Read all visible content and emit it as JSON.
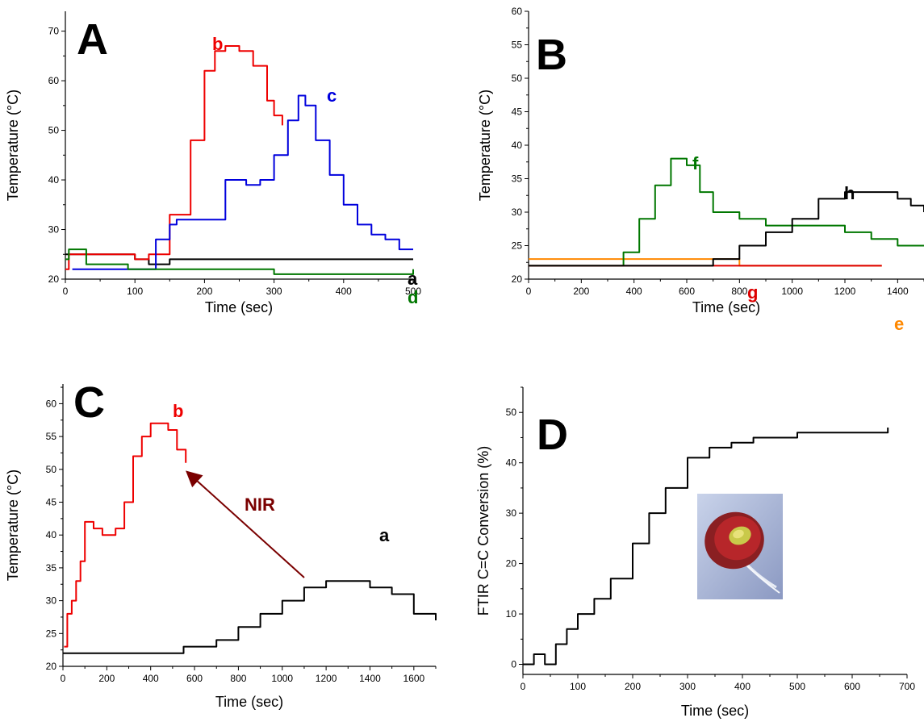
{
  "chart_data": [
    {
      "panel": "A",
      "type": "line",
      "xlabel": "Time (sec)",
      "ylabel": "Temperature (°C)",
      "xlim": [
        0,
        500
      ],
      "ylim": [
        20,
        74
      ],
      "xticks": [
        0,
        100,
        200,
        300,
        400,
        500
      ],
      "yticks": [
        20,
        30,
        40,
        50,
        60,
        70
      ],
      "series": [
        {
          "name": "a",
          "color": "#000000",
          "x": [
            0,
            5,
            100,
            120,
            150,
            200,
            250,
            300,
            350,
            400,
            450,
            500
          ],
          "y": [
            25,
            25,
            24,
            23,
            24,
            24,
            24,
            24,
            24,
            24,
            24,
            24
          ]
        },
        {
          "name": "b",
          "color": "#ee0000",
          "x": [
            0,
            5,
            100,
            120,
            150,
            180,
            200,
            215,
            230,
            250,
            270,
            290,
            300,
            312
          ],
          "y": [
            22,
            25,
            24,
            25,
            33,
            48,
            62,
            66,
            67,
            66,
            63,
            56,
            53,
            51
          ]
        },
        {
          "name": "c",
          "color": "#0000dd",
          "x": [
            10,
            110,
            130,
            150,
            160,
            200,
            230,
            240,
            260,
            280,
            300,
            320,
            335,
            345,
            360,
            380,
            400,
            420,
            440,
            460,
            480,
            500
          ],
          "y": [
            22,
            22,
            28,
            31,
            32,
            32,
            40,
            40,
            39,
            40,
            45,
            52,
            57,
            55,
            48,
            41,
            35,
            31,
            29,
            28,
            26,
            26
          ]
        },
        {
          "name": "d",
          "color": "#007700",
          "x": [
            0,
            5,
            30,
            70,
            90,
            120,
            200,
            300,
            400,
            480,
            500
          ],
          "y": [
            24,
            26,
            23,
            23,
            22,
            22,
            22,
            21,
            21,
            21,
            22
          ]
        }
      ]
    },
    {
      "panel": "B",
      "type": "line",
      "xlabel": "Time (sec)",
      "ylabel": "Temperature (°C)",
      "xlim": [
        0,
        1500
      ],
      "ylim": [
        20,
        60
      ],
      "xticks": [
        0,
        200,
        400,
        600,
        800,
        1000,
        1200,
        1400
      ],
      "yticks": [
        20,
        25,
        30,
        35,
        40,
        45,
        50,
        55,
        60
      ],
      "series": [
        {
          "name": "e",
          "color": "#ff8800",
          "x": [
            0,
            200,
            400,
            600,
            800,
            1000,
            1200,
            1340
          ],
          "y": [
            23,
            23,
            23,
            23,
            22,
            22,
            22,
            22
          ]
        },
        {
          "name": "f",
          "color": "#007700",
          "x": [
            0,
            300,
            360,
            420,
            480,
            540,
            600,
            650,
            700,
            800,
            900,
            1000,
            1100,
            1200,
            1300,
            1400,
            1500
          ],
          "y": [
            22,
            22,
            24,
            29,
            34,
            38,
            37,
            33,
            30,
            29,
            28,
            28,
            28,
            27,
            26,
            25,
            25
          ]
        },
        {
          "name": "g",
          "color": "#dd0000",
          "x": [
            0,
            200,
            400,
            600,
            800,
            1000,
            1200,
            1340
          ],
          "y": [
            22,
            22,
            22,
            22,
            22,
            22,
            22,
            22
          ]
        },
        {
          "name": "h",
          "color": "#000000",
          "x": [
            0,
            200,
            400,
            600,
            700,
            800,
            900,
            1000,
            1100,
            1200,
            1300,
            1400,
            1450,
            1500
          ],
          "y": [
            22,
            22,
            22,
            22,
            23,
            25,
            27,
            29,
            32,
            33,
            33,
            32,
            31,
            30
          ]
        }
      ]
    },
    {
      "panel": "C",
      "type": "line",
      "xlabel": "Time (sec)",
      "ylabel": "Temperature (°C)",
      "xlim": [
        0,
        1700
      ],
      "ylim": [
        20,
        63
      ],
      "xticks": [
        0,
        200,
        400,
        600,
        800,
        1000,
        1200,
        1400,
        1600
      ],
      "yticks": [
        20,
        25,
        30,
        35,
        40,
        45,
        50,
        55,
        60
      ],
      "annotation": "NIR",
      "series": [
        {
          "name": "a",
          "color": "#000000",
          "x": [
            0,
            200,
            400,
            550,
            600,
            700,
            800,
            900,
            1000,
            1100,
            1200,
            1300,
            1400,
            1500,
            1600,
            1700
          ],
          "y": [
            22,
            22,
            22,
            23,
            23,
            24,
            26,
            28,
            30,
            32,
            33,
            33,
            32,
            31,
            28,
            27
          ]
        },
        {
          "name": "b",
          "color": "#ee0000",
          "x": [
            5,
            20,
            40,
            60,
            80,
            100,
            140,
            180,
            240,
            280,
            320,
            360,
            400,
            440,
            480,
            520,
            560
          ],
          "y": [
            23,
            28,
            30,
            33,
            36,
            42,
            41,
            40,
            41,
            45,
            52,
            55,
            57,
            57,
            56,
            53,
            51
          ]
        }
      ]
    },
    {
      "panel": "D",
      "type": "line",
      "xlabel": "Time (sec)",
      "ylabel": "FTIR C=C Conversion (%)",
      "xlim": [
        0,
        700
      ],
      "ylim": [
        -2,
        55
      ],
      "xticks": [
        0,
        100,
        200,
        300,
        400,
        500,
        600,
        700
      ],
      "yticks": [
        0,
        10,
        20,
        30,
        40,
        50
      ],
      "series": [
        {
          "name": "",
          "color": "#000000",
          "x": [
            0,
            20,
            40,
            60,
            80,
            100,
            130,
            160,
            200,
            230,
            260,
            300,
            340,
            380,
            420,
            460,
            500,
            560,
            620,
            665
          ],
          "y": [
            0,
            2,
            0,
            4,
            7,
            10,
            13,
            17,
            24,
            30,
            35,
            41,
            43,
            44,
            45,
            45,
            46,
            46,
            46,
            47
          ]
        }
      ]
    }
  ]
}
